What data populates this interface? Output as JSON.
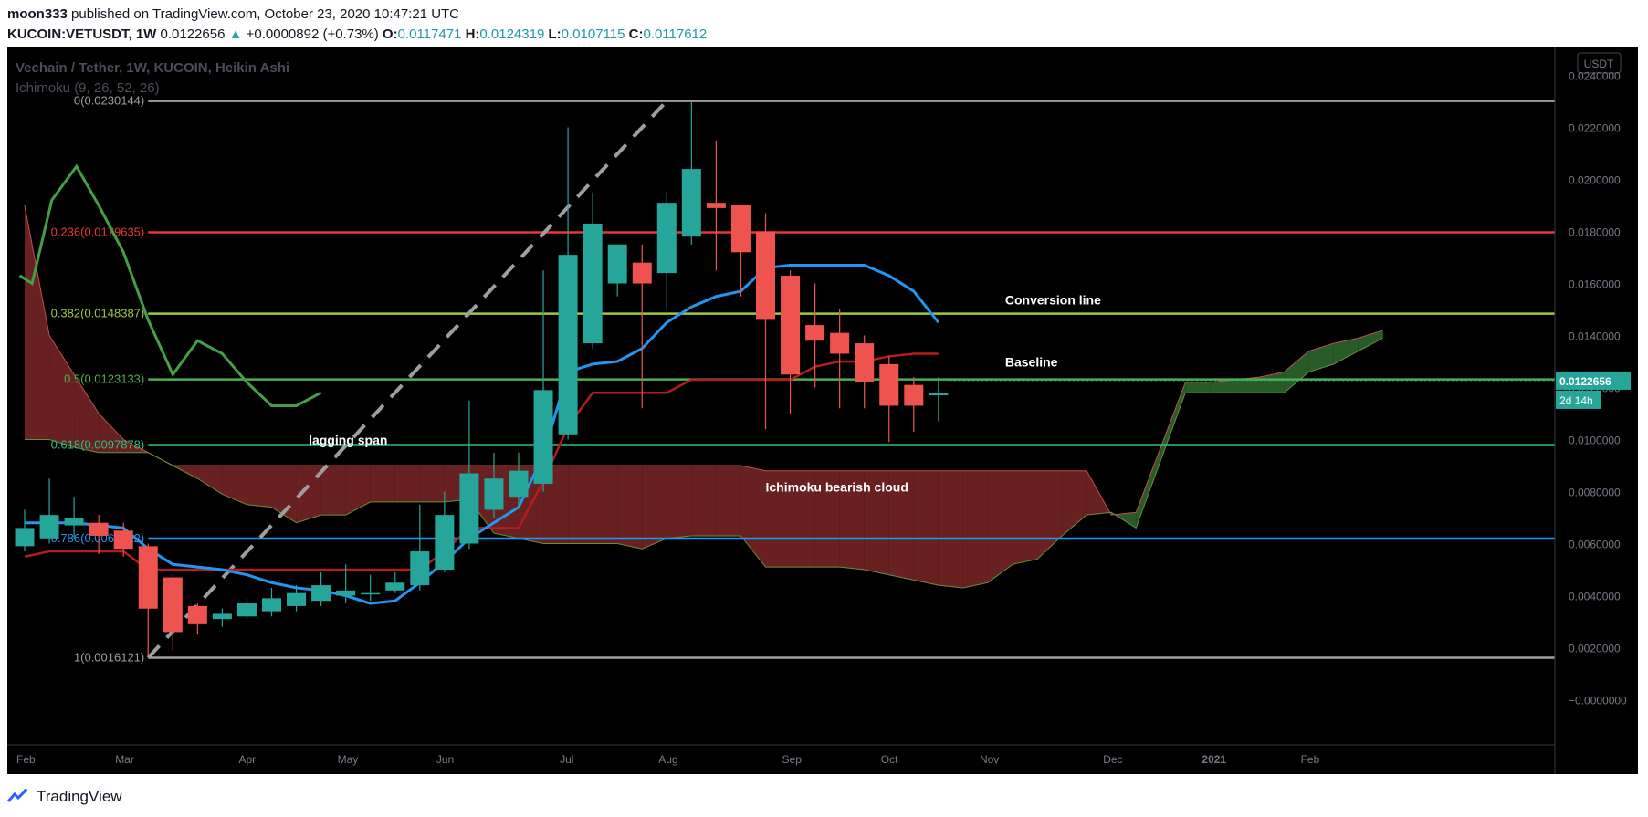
{
  "header": {
    "author": "moon333",
    "published_text": "published on TradingView.com, October 23, 2020 10:47:21 UTC",
    "symbol": "KUCOIN:VETUSDT, 1W",
    "last_price": "0.0122656",
    "change_arrow": "▲",
    "change": "+0.0000892 (+0.73%)",
    "ohlc": [
      {
        "label": "O:",
        "value": "0.0117471"
      },
      {
        "label": "H:",
        "value": "0.0124319"
      },
      {
        "label": "L:",
        "value": "0.0107115"
      },
      {
        "label": "C:",
        "value": "0.0117612"
      }
    ]
  },
  "legend": {
    "title": "Vechain / Tether, 1W, KUCOIN, Heikin Ashi",
    "indicator": "Ichimoku (9, 26, 52, 26)"
  },
  "footer": {
    "brand": "TradingView"
  },
  "colors": {
    "background": "#000000",
    "up": "#26a69a",
    "down": "#ef5350",
    "conversion": "#2196f3",
    "baseline": "#b71c1c",
    "lagging": "#43a047",
    "cloud_bear": "#7a2626",
    "cloud_bull": "#2e6b2e",
    "axis_text": "#787b86"
  },
  "chart_data": {
    "type": "candlestick",
    "style": "Heikin Ashi",
    "ylim": [
      -0.001,
      0.025
    ],
    "y_ticks": [
      "−0.0000000",
      "0.0020000",
      "0.0040000",
      "0.0060000",
      "0.0080000",
      "0.0100000",
      "0.0120000",
      "0.0140000",
      "0.0160000",
      "0.0180000",
      "0.0200000",
      "0.0220000",
      "0.0240000"
    ],
    "y_tick_values": [
      0,
      0.002,
      0.004,
      0.006,
      0.008,
      0.01,
      0.012,
      0.014,
      0.016,
      0.018,
      0.02,
      0.022,
      0.024
    ],
    "x_labels": [
      {
        "label": "Feb",
        "week": 0
      },
      {
        "label": "Mar",
        "week": 4
      },
      {
        "label": "Apr",
        "week": 9
      },
      {
        "label": "May",
        "week": 13
      },
      {
        "label": "Jun",
        "week": 17
      },
      {
        "label": "Jul",
        "week": 22
      },
      {
        "label": "Aug",
        "week": 26
      },
      {
        "label": "Sep",
        "week": 31
      },
      {
        "label": "Oct",
        "week": 35
      },
      {
        "label": "Nov",
        "week": 39
      },
      {
        "label": "Dec",
        "week": 44
      },
      {
        "label": "2021",
        "week": 48
      },
      {
        "label": "Feb",
        "week": 52
      }
    ],
    "price_unit": "USDT",
    "last_price_label": "0.0122656",
    "countdown": "2d 14h",
    "candles": [
      {
        "o": 0.0059,
        "h": 0.0073,
        "l": 0.0057,
        "c": 0.0066
      },
      {
        "o": 0.0062,
        "h": 0.0085,
        "l": 0.006,
        "c": 0.0071
      },
      {
        "o": 0.0067,
        "h": 0.0078,
        "l": 0.0062,
        "c": 0.007
      },
      {
        "o": 0.0068,
        "h": 0.0071,
        "l": 0.0056,
        "c": 0.0063
      },
      {
        "o": 0.0065,
        "h": 0.0068,
        "l": 0.0055,
        "c": 0.0058
      },
      {
        "o": 0.0059,
        "h": 0.006,
        "l": 0.0017,
        "c": 0.0035
      },
      {
        "o": 0.0047,
        "h": 0.0048,
        "l": 0.0019,
        "c": 0.0026
      },
      {
        "o": 0.0036,
        "h": 0.0037,
        "l": 0.0025,
        "c": 0.0029
      },
      {
        "o": 0.0031,
        "h": 0.0035,
        "l": 0.0028,
        "c": 0.0033
      },
      {
        "o": 0.0032,
        "h": 0.0039,
        "l": 0.0031,
        "c": 0.0037
      },
      {
        "o": 0.0034,
        "h": 0.0043,
        "l": 0.0032,
        "c": 0.0039
      },
      {
        "o": 0.0036,
        "h": 0.0044,
        "l": 0.0034,
        "c": 0.0041
      },
      {
        "o": 0.0038,
        "h": 0.0049,
        "l": 0.0036,
        "c": 0.0044
      },
      {
        "o": 0.004,
        "h": 0.0052,
        "l": 0.0037,
        "c": 0.0042
      },
      {
        "o": 0.0041,
        "h": 0.0048,
        "l": 0.0038,
        "c": 0.0041
      },
      {
        "o": 0.0042,
        "h": 0.0049,
        "l": 0.0041,
        "c": 0.0045
      },
      {
        "o": 0.0044,
        "h": 0.0075,
        "l": 0.0042,
        "c": 0.0057
      },
      {
        "o": 0.005,
        "h": 0.008,
        "l": 0.0049,
        "c": 0.0071
      },
      {
        "o": 0.006,
        "h": 0.0115,
        "l": 0.0058,
        "c": 0.0087
      },
      {
        "o": 0.0073,
        "h": 0.0095,
        "l": 0.007,
        "c": 0.0085
      },
      {
        "o": 0.0078,
        "h": 0.0095,
        "l": 0.0074,
        "c": 0.0088
      },
      {
        "o": 0.0083,
        "h": 0.0165,
        "l": 0.008,
        "c": 0.0119
      },
      {
        "o": 0.0102,
        "h": 0.022,
        "l": 0.01,
        "c": 0.0171
      },
      {
        "o": 0.0137,
        "h": 0.0195,
        "l": 0.0135,
        "c": 0.0183
      },
      {
        "o": 0.016,
        "h": 0.0175,
        "l": 0.0155,
        "c": 0.0175
      },
      {
        "o": 0.0168,
        "h": 0.0175,
        "l": 0.0112,
        "c": 0.016
      },
      {
        "o": 0.0164,
        "h": 0.0195,
        "l": 0.015,
        "c": 0.0191
      },
      {
        "o": 0.0178,
        "h": 0.023,
        "l": 0.0175,
        "c": 0.0204
      },
      {
        "o": 0.0191,
        "h": 0.0215,
        "l": 0.0165,
        "c": 0.0189
      },
      {
        "o": 0.019,
        "h": 0.019,
        "l": 0.0155,
        "c": 0.0172
      },
      {
        "o": 0.018,
        "h": 0.0187,
        "l": 0.0104,
        "c": 0.0146
      },
      {
        "o": 0.0163,
        "h": 0.0165,
        "l": 0.011,
        "c": 0.0125
      },
      {
        "o": 0.0144,
        "h": 0.016,
        "l": 0.012,
        "c": 0.0138
      },
      {
        "o": 0.0141,
        "h": 0.015,
        "l": 0.0112,
        "c": 0.0133
      },
      {
        "o": 0.0137,
        "h": 0.014,
        "l": 0.0112,
        "c": 0.0122
      },
      {
        "o": 0.0129,
        "h": 0.0132,
        "l": 0.0099,
        "c": 0.0113
      },
      {
        "o": 0.0121,
        "h": 0.0124,
        "l": 0.0103,
        "c": 0.0113
      },
      {
        "o": 0.0117,
        "h": 0.0124,
        "l": 0.0107,
        "c": 0.0118
      }
    ],
    "conversion_line": [
      0.0068,
      0.0068,
      0.0068,
      0.0067,
      0.0066,
      0.0058,
      0.0052,
      0.0051,
      0.005,
      0.0048,
      0.0045,
      0.0043,
      0.0042,
      0.004,
      0.0037,
      0.0038,
      0.0045,
      0.0053,
      0.0062,
      0.0068,
      0.0074,
      0.0094,
      0.0126,
      0.0129,
      0.013,
      0.0135,
      0.0145,
      0.0151,
      0.0155,
      0.0157,
      0.0166,
      0.0167,
      0.0167,
      0.0167,
      0.0167,
      0.0163,
      0.0157,
      0.0145
    ],
    "baseline": [
      0.0055,
      0.0057,
      0.0057,
      0.0057,
      0.0057,
      0.005,
      0.005,
      0.005,
      0.005,
      0.005,
      0.005,
      0.005,
      0.005,
      0.005,
      0.005,
      0.005,
      0.005,
      0.0057,
      0.0066,
      0.0066,
      0.0066,
      0.0084,
      0.0105,
      0.0118,
      0.0118,
      0.0118,
      0.0118,
      0.0123,
      0.0123,
      0.0123,
      0.0123,
      0.0123,
      0.0128,
      0.013,
      0.013,
      0.0132,
      0.0133,
      0.0133
    ],
    "lagging_span": [
      {
        "week": -0.2,
        "v": 0.0163
      },
      {
        "week": 0.3,
        "v": 0.016
      },
      {
        "week": 1.1,
        "v": 0.0192
      },
      {
        "week": 2.1,
        "v": 0.0205
      },
      {
        "week": 3.0,
        "v": 0.019
      },
      {
        "week": 4.0,
        "v": 0.0172
      },
      {
        "week": 5.0,
        "v": 0.0146
      },
      {
        "week": 6.0,
        "v": 0.0125
      },
      {
        "week": 7.0,
        "v": 0.0138
      },
      {
        "week": 8.0,
        "v": 0.0133
      },
      {
        "week": 9.0,
        "v": 0.0122
      },
      {
        "week": 10.0,
        "v": 0.0113
      },
      {
        "week": 11.0,
        "v": 0.0113
      },
      {
        "week": 12.0,
        "v": 0.0118
      }
    ],
    "cloud_top": [
      0.019,
      0.014,
      0.0125,
      0.011,
      0.01,
      0.0095,
      0.009,
      0.009,
      0.009,
      0.009,
      0.009,
      0.009,
      0.009,
      0.009,
      0.009,
      0.009,
      0.009,
      0.009,
      0.009,
      0.009,
      0.009,
      0.009,
      0.009,
      0.009,
      0.009,
      0.009,
      0.009,
      0.009,
      0.009,
      0.009,
      0.0088,
      0.0088,
      0.0088,
      0.0088,
      0.0088,
      0.0088,
      0.0088,
      0.0088,
      0.0088,
      0.0088,
      0.0088,
      0.0088,
      0.0088,
      0.0088,
      0.0071,
      0.0072,
      0.0097,
      0.0122,
      0.0122,
      0.0123,
      0.0124,
      0.0126,
      0.0134,
      0.0137,
      0.0139,
      0.0142
    ],
    "cloud_bottom": [
      0.01,
      0.01,
      0.0097,
      0.0095,
      0.0095,
      0.0095,
      0.009,
      0.0085,
      0.0079,
      0.0075,
      0.0074,
      0.0068,
      0.0071,
      0.0071,
      0.0076,
      0.0076,
      0.0076,
      0.0076,
      0.0077,
      0.0064,
      0.0062,
      0.006,
      0.006,
      0.006,
      0.006,
      0.0058,
      0.0062,
      0.0063,
      0.0063,
      0.0063,
      0.0051,
      0.0051,
      0.0051,
      0.0051,
      0.005,
      0.0048,
      0.0046,
      0.0044,
      0.0043,
      0.0045,
      0.0052,
      0.0054,
      0.0063,
      0.0071,
      0.0072,
      0.0066,
      0.0092,
      0.0118,
      0.0118,
      0.0118,
      0.0118,
      0.0118,
      0.0126,
      0.0129,
      0.0134,
      0.0139
    ],
    "fib_levels": [
      {
        "label": "0(0.0230144)",
        "value": 0.0230144,
        "color": "#9e9e9e"
      },
      {
        "label": "0.236(0.0179635)",
        "value": 0.0179635,
        "color": "#e53935"
      },
      {
        "label": "0.382(0.0148387)",
        "value": 0.0148387,
        "color": "#9ccc3c"
      },
      {
        "label": "0.5(0.0123133)",
        "value": 0.0123133,
        "color": "#4caf50"
      },
      {
        "label": "0.618(0.0097878)",
        "value": 0.0097878,
        "color": "#26c281"
      },
      {
        "label": "0.786(0.0061922)",
        "value": 0.0061922,
        "color": "#2196f3"
      },
      {
        "label": "1(0.0016121)",
        "value": 0.0016121,
        "color": "#9e9e9e"
      }
    ],
    "trend_line": {
      "from": {
        "week": 5,
        "v": 0.0016121
      },
      "to": {
        "week": 26,
        "v": 0.0230144
      }
    },
    "annotations": [
      {
        "text": "lagging span",
        "week": 11.5,
        "v": 0.0098
      },
      {
        "text": "Conversion line",
        "week": 39.7,
        "v": 0.0152
      },
      {
        "text": "Baseline",
        "week": 39.7,
        "v": 0.0128
      },
      {
        "text": "Ichimoku bearish cloud",
        "week": 30,
        "v": 0.008
      }
    ]
  }
}
